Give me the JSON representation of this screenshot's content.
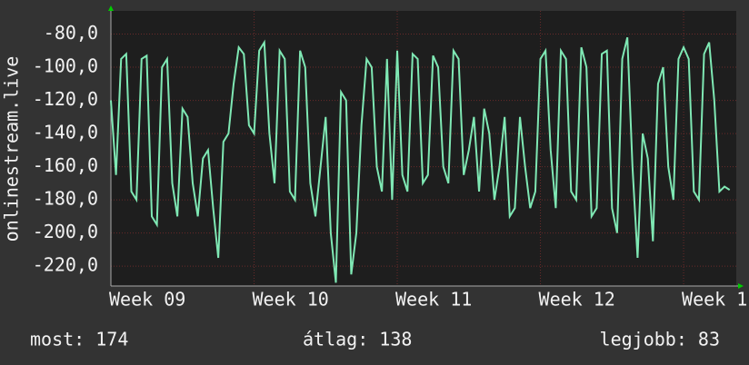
{
  "chart_data": {
    "type": "line",
    "y_axis_label": "onlinestream.live",
    "x": [
      0,
      1,
      2,
      3,
      4,
      5,
      6,
      7,
      8,
      9,
      10,
      11,
      12,
      13,
      14,
      15,
      16,
      17,
      18,
      19,
      20,
      21,
      22,
      23,
      24,
      25,
      26,
      27,
      28,
      29,
      30,
      31,
      32,
      33,
      34,
      35,
      36,
      37,
      38,
      39,
      40,
      41,
      42,
      43,
      44,
      45,
      46,
      47,
      48,
      49,
      50,
      51,
      52,
      53,
      54,
      55,
      56,
      57,
      58,
      59,
      60,
      61,
      62,
      63,
      64,
      65,
      66,
      67,
      68,
      69,
      70,
      71,
      72,
      73,
      74,
      75,
      76,
      77,
      78,
      79,
      80,
      81,
      82,
      83,
      84,
      85,
      86,
      87,
      88,
      89,
      90,
      91,
      92,
      93,
      94,
      95,
      96,
      97,
      98,
      99,
      100,
      101,
      102,
      103,
      104,
      105,
      106,
      107,
      108,
      109,
      110,
      111,
      112,
      113,
      114,
      115,
      116,
      117,
      118,
      119,
      120,
      121
    ],
    "series": [
      {
        "color": "#7fe8b4",
        "values": [
          -120,
          -165,
          -95,
          -92,
          -175,
          -180,
          -95,
          -93,
          -190,
          -195,
          -100,
          -95,
          -170,
          -190,
          -125,
          -130,
          -170,
          -190,
          -155,
          -150,
          -185,
          -215,
          -145,
          -140,
          -110,
          -88,
          -92,
          -135,
          -140,
          -90,
          -85,
          -140,
          -170,
          -90,
          -95,
          -175,
          -180,
          -90,
          -100,
          -170,
          -190,
          -160,
          -130,
          -200,
          -230,
          -115,
          -120,
          -225,
          -200,
          -135,
          -95,
          -100,
          -160,
          -175,
          -95,
          -180,
          -90,
          -165,
          -175,
          -92,
          -95,
          -170,
          -165,
          -93,
          -100,
          -160,
          -170,
          -90,
          -95,
          -165,
          -150,
          -130,
          -175,
          -125,
          -140,
          -180,
          -160,
          -130,
          -190,
          -185,
          -130,
          -160,
          -185,
          -175,
          -95,
          -90,
          -150,
          -185,
          -90,
          -95,
          -175,
          -180,
          -88,
          -100,
          -190,
          -185,
          -92,
          -90,
          -185,
          -200,
          -95,
          -82,
          -160,
          -215,
          -140,
          -155,
          -205,
          -110,
          -100,
          -160,
          -180,
          -95,
          -88,
          -95,
          -175,
          -180,
          -92,
          -85,
          -120,
          -175,
          -172,
          -174
        ]
      }
    ],
    "xlim": [
      0,
      122.3
    ],
    "xticks": [
      {
        "value": 0,
        "label": "Week 09"
      },
      {
        "value": 28,
        "label": "Week 10"
      },
      {
        "value": 56,
        "label": "Week 11"
      },
      {
        "value": 84,
        "label": "Week 12"
      },
      {
        "value": 112,
        "label": "Week 1"
      }
    ],
    "ylim": [
      -232,
      -66
    ],
    "yticks": [
      {
        "value": -220,
        "label": "-220,0"
      },
      {
        "value": -200,
        "label": "-200,0"
      },
      {
        "value": -180,
        "label": "-180,0"
      },
      {
        "value": -160,
        "label": "-160,0"
      },
      {
        "value": -140,
        "label": "-140,0"
      },
      {
        "value": -120,
        "label": "-120,0"
      },
      {
        "value": -100,
        "label": "-100,0"
      },
      {
        "value": -80,
        "label": "-80,0"
      }
    ],
    "grid": true,
    "stats": [
      "most: 174",
      "átlag: 138",
      "legjobb: 83"
    ]
  }
}
